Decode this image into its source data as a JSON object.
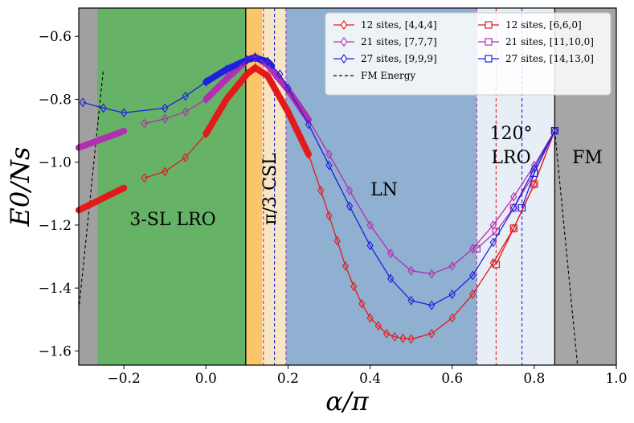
{
  "chart_data": {
    "type": "line",
    "title": "",
    "xlabel": "α/π",
    "ylabel": "E0/Ns",
    "xlim": [
      -0.31,
      1.0
    ],
    "ylim": [
      -1.645,
      -0.51
    ],
    "x_ticks": [
      -0.2,
      0.0,
      0.2,
      0.4,
      0.6,
      0.8,
      1.0
    ],
    "x_tick_labels": [
      "−0.2",
      "0.0",
      "0.2",
      "0.4",
      "0.6",
      "0.8",
      "1.0"
    ],
    "y_ticks": [
      -0.6,
      -0.8,
      -1.0,
      -1.2,
      -1.4,
      -1.6
    ],
    "y_tick_labels": [
      "−0.6",
      "−0.8",
      "−1.0",
      "−1.2",
      "−1.4",
      "−1.6"
    ],
    "regions": [
      {
        "name": "gray-left",
        "x0": -0.31,
        "x1": -0.265,
        "color": "#a0a0a0"
      },
      {
        "name": "3-sl",
        "x0": -0.265,
        "x1": 0.097,
        "color": "#66b266",
        "label": "3-SL LRO"
      },
      {
        "name": "csl",
        "x0": 0.097,
        "x1": 0.137,
        "color": "#fbc66a",
        "label": "π/3 CSL"
      },
      {
        "name": "csl-light",
        "x0": 0.137,
        "x1": 0.195,
        "color": "#f7e6c4"
      },
      {
        "name": "ln",
        "x0": 0.195,
        "x1": 0.66,
        "color": "#8fb0d0",
        "label": "LN"
      },
      {
        "name": "lro120",
        "x0": 0.66,
        "x1": 0.85,
        "color": "#e8eef6",
        "label_line1": "120°",
        "label_line2": "LRO"
      },
      {
        "name": "fm",
        "x0": 0.85,
        "x1": 1.0,
        "color": "#a6a6a6",
        "label": "FM"
      }
    ],
    "vlines": [
      {
        "x": 0.097,
        "color": "#000000",
        "style": "solid"
      },
      {
        "x": 0.85,
        "color": "#000000",
        "style": "solid"
      },
      {
        "x": 0.14,
        "color": "#e31a1c",
        "style": "dashed"
      },
      {
        "x": 0.167,
        "color": "#1f1fe0",
        "style": "dashed"
      },
      {
        "x": 0.195,
        "color": "#b030b0",
        "style": "dashed"
      },
      {
        "x": 0.66,
        "color": "#b030b0",
        "style": "dashed"
      },
      {
        "x": 0.707,
        "color": "#e31a1c",
        "style": "dashed"
      },
      {
        "x": 0.77,
        "color": "#1f1fe0",
        "style": "dashed"
      }
    ],
    "fm_energy": [
      {
        "x": [
          -0.31,
          -0.25
        ],
        "y": [
          -1.47,
          -0.705
        ]
      },
      {
        "x": [
          0.85,
          0.905
        ],
        "y": [
          -0.9,
          -1.64
        ]
      }
    ],
    "thick_segments": [
      {
        "series": "12 sites, [4,4,4]",
        "x0": -0.31,
        "x1": -0.2,
        "color": "#e31a1c"
      },
      {
        "series": "12 sites, [4,4,4]",
        "x0": 0.0,
        "x1": 0.25,
        "color": "#e31a1c"
      },
      {
        "series": "21 sites, [7,7,7]",
        "x0": -0.31,
        "x1": -0.2,
        "color": "#b030b0"
      },
      {
        "series": "21 sites, [7,7,7]",
        "x0": 0.0,
        "x1": 0.25,
        "color": "#b030b0"
      },
      {
        "series": "27 sites, [9,9,9]",
        "x0": 0.0,
        "x1": 0.16,
        "color": "#1f1fe0"
      }
    ],
    "series": [
      {
        "name": "12 sites, [4,4,4]",
        "color": "#e31a1c",
        "marker": "diamond",
        "x": [
          -0.15,
          -0.1,
          -0.05,
          0.0,
          0.05,
          0.1,
          0.12,
          0.15,
          0.2,
          0.25,
          0.28,
          0.3,
          0.32,
          0.34,
          0.36,
          0.38,
          0.4,
          0.42,
          0.44,
          0.46,
          0.48,
          0.5,
          0.55,
          0.6,
          0.65,
          0.7,
          0.75,
          0.8,
          0.85
        ],
        "y": [
          -1.05,
          -1.03,
          -0.985,
          -0.91,
          -0.8,
          -0.72,
          -0.7,
          -0.725,
          -0.84,
          -0.975,
          -1.09,
          -1.17,
          -1.25,
          -1.33,
          -1.395,
          -1.45,
          -1.495,
          -1.52,
          -1.545,
          -1.555,
          -1.56,
          -1.562,
          -1.545,
          -1.495,
          -1.42,
          -1.32,
          -1.21,
          -1.07,
          -0.9
        ]
      },
      {
        "name": "12 sites, [6,6,0]",
        "color": "#e31a1c",
        "marker": "square",
        "x": [
          0.707,
          0.75,
          0.8,
          0.85
        ],
        "y": [
          -1.325,
          -1.21,
          -1.07,
          -0.9
        ]
      },
      {
        "name": "21 sites, [7,7,7]",
        "color": "#b030b0",
        "marker": "diamond",
        "x": [
          -0.15,
          -0.1,
          -0.05,
          0.0,
          0.05,
          0.1,
          0.12,
          0.15,
          0.2,
          0.25,
          0.3,
          0.35,
          0.4,
          0.45,
          0.5,
          0.55,
          0.6,
          0.65,
          0.7,
          0.75,
          0.8,
          0.85
        ],
        "y": [
          -0.877,
          -0.862,
          -0.84,
          -0.8,
          -0.735,
          -0.675,
          -0.665,
          -0.69,
          -0.77,
          -0.865,
          -0.975,
          -1.09,
          -1.2,
          -1.29,
          -1.345,
          -1.355,
          -1.33,
          -1.275,
          -1.2,
          -1.11,
          -1.01,
          -0.9
        ]
      },
      {
        "name": "21 sites, [11,10,0]",
        "color": "#b030b0",
        "marker": "square",
        "x": [
          0.66,
          0.707,
          0.75,
          0.8,
          0.85
        ],
        "y": [
          -1.275,
          -1.22,
          -1.145,
          -1.035,
          -0.9
        ]
      },
      {
        "name": "27 sites, [9,9,9]",
        "color": "#1f1fe0",
        "marker": "diamond",
        "x": [
          -0.3,
          -0.25,
          -0.2,
          -0.1,
          -0.05,
          0.0,
          0.05,
          0.1,
          0.12,
          0.15,
          0.18,
          0.2,
          0.25,
          0.3,
          0.35,
          0.4,
          0.45,
          0.5,
          0.55,
          0.6,
          0.65,
          0.7,
          0.75,
          0.8,
          0.85
        ],
        "y": [
          -0.81,
          -0.828,
          -0.843,
          -0.828,
          -0.79,
          -0.745,
          -0.705,
          -0.675,
          -0.668,
          -0.68,
          -0.72,
          -0.765,
          -0.88,
          -1.01,
          -1.14,
          -1.265,
          -1.37,
          -1.44,
          -1.455,
          -1.42,
          -1.36,
          -1.255,
          -1.145,
          -1.02,
          -0.9
        ]
      },
      {
        "name": "27 sites, [14,13,0]",
        "color": "#1f1fe0",
        "marker": "square",
        "x": [
          0.77,
          0.8,
          0.85
        ],
        "y": [
          -1.145,
          -1.035,
          -0.9
        ]
      }
    ],
    "legend": {
      "placement": "top-right",
      "entries": [
        {
          "label": "12 sites, [4,4,4]",
          "color": "#e31a1c",
          "marker": "diamond",
          "style": "solid"
        },
        {
          "label": "12 sites, [6,6,0]",
          "color": "#e31a1c",
          "marker": "square",
          "style": "solid"
        },
        {
          "label": "21 sites, [7,7,7]",
          "color": "#b030b0",
          "marker": "diamond",
          "style": "solid"
        },
        {
          "label": "21 sites, [11,10,0]",
          "color": "#b030b0",
          "marker": "square",
          "style": "solid"
        },
        {
          "label": "27 sites, [9,9,9]",
          "color": "#1f1fe0",
          "marker": "diamond",
          "style": "solid"
        },
        {
          "label": "27 sites, [14,13,0]",
          "color": "#1f1fe0",
          "marker": "square",
          "style": "solid"
        },
        {
          "label": "FM Energy",
          "color": "#000000",
          "marker": "none",
          "style": "dashed"
        }
      ]
    }
  }
}
